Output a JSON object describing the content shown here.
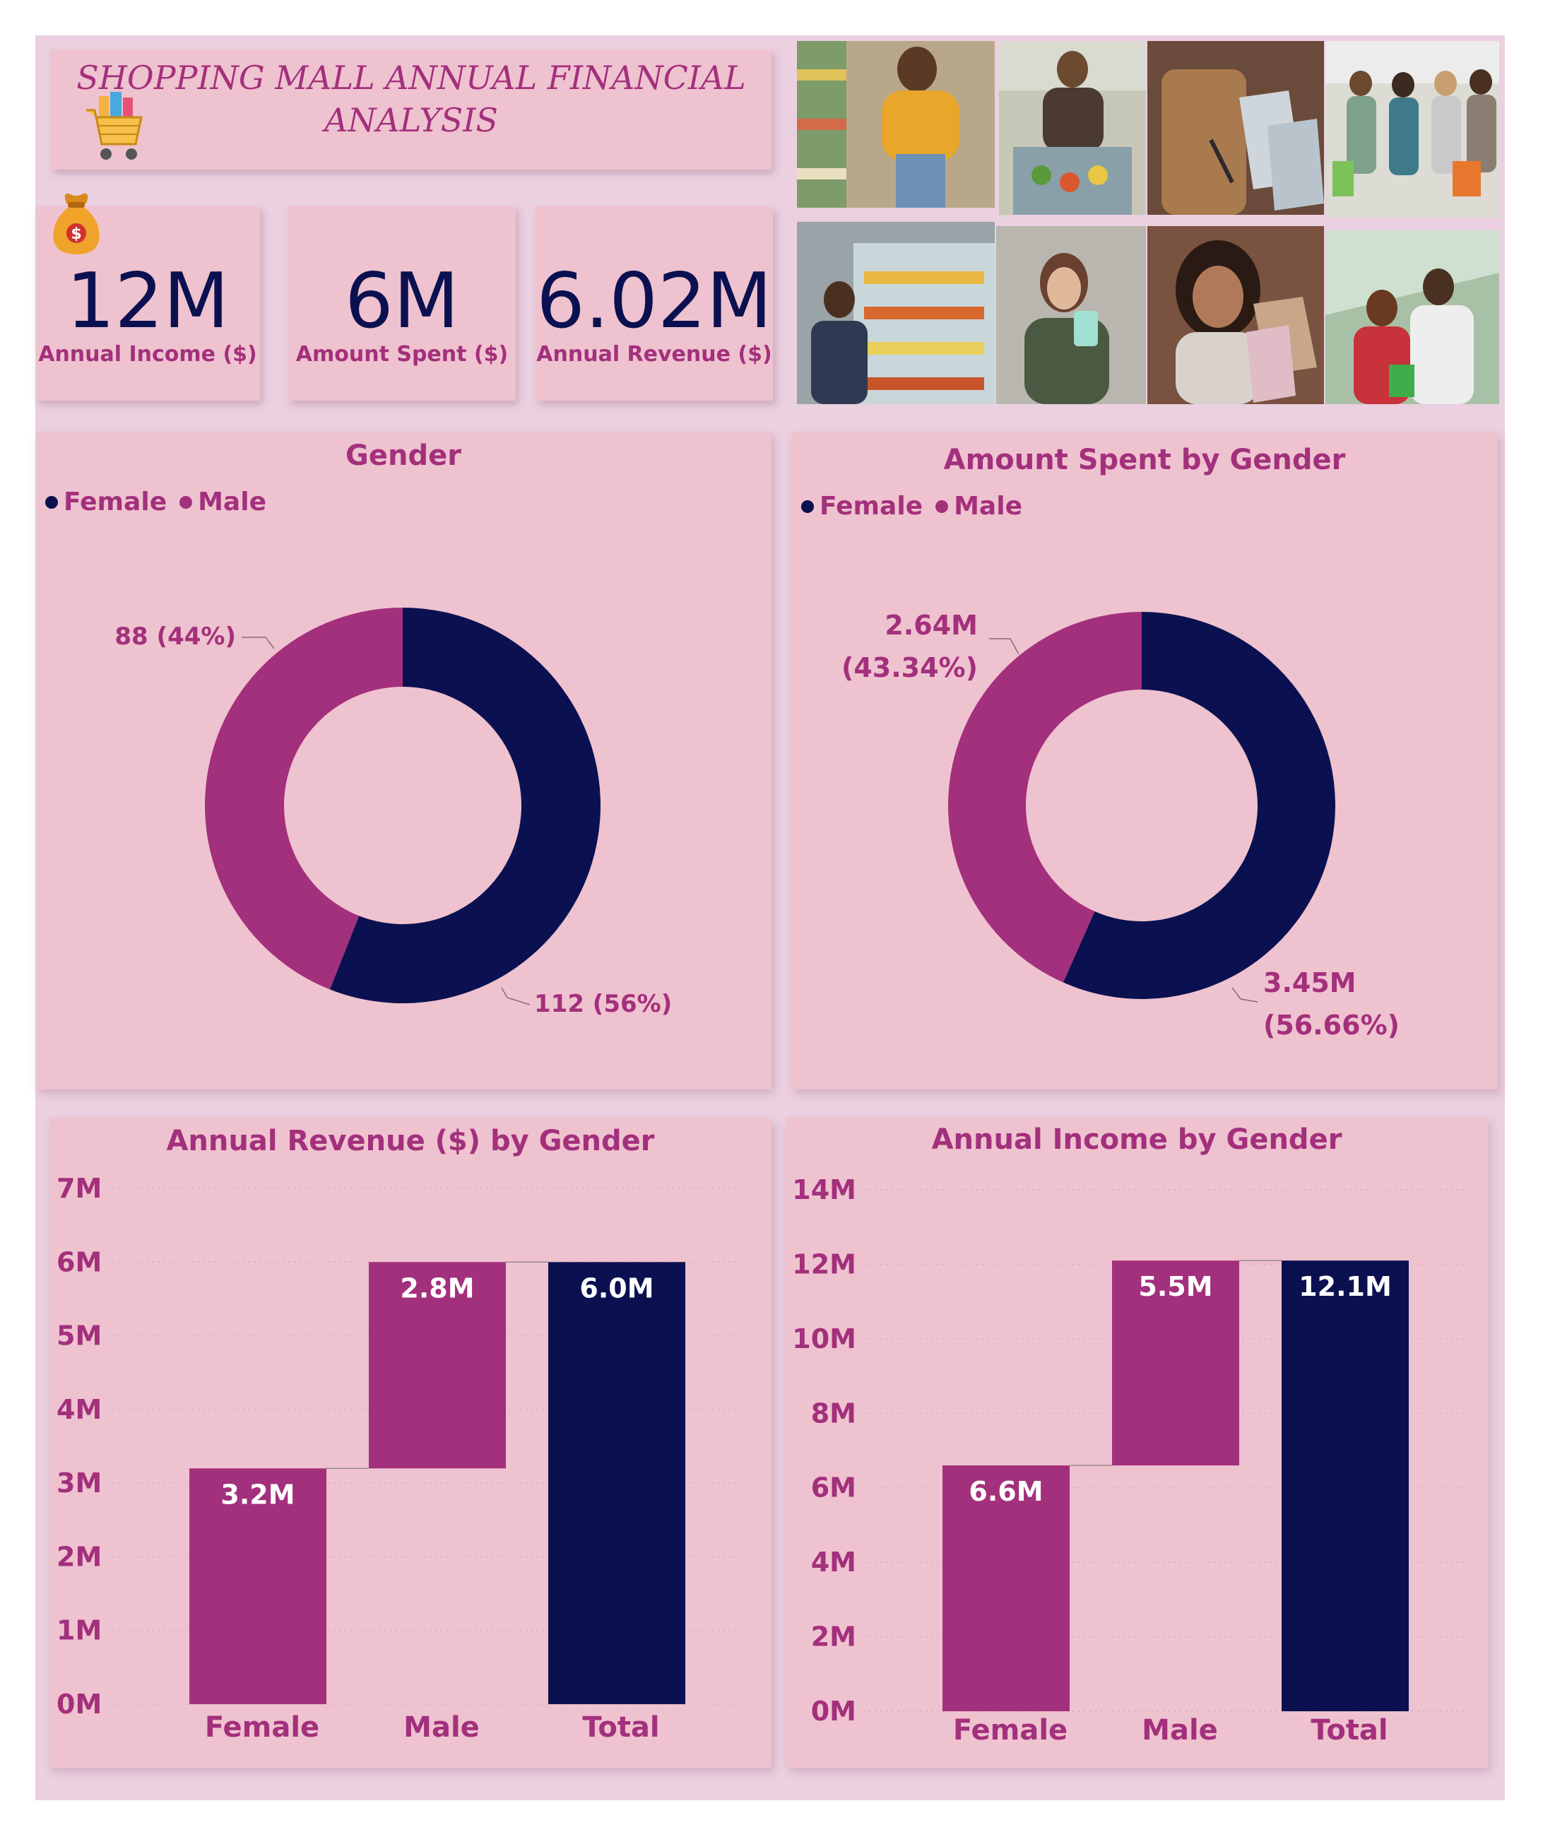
{
  "header": {
    "title_line1": "SHOPPING MALL  ANNUAL FINANCIAL",
    "title_line2": "ANALYSIS"
  },
  "colors": {
    "female": "#0b1150",
    "male": "#a3307c",
    "total": "#0b1150",
    "panel": "#efc2cf",
    "background": "#ebd0e0",
    "accent_text": "#a3307c"
  },
  "icons": [
    "shopping-cart-icon",
    "money-bag-icon"
  ],
  "kpis": [
    {
      "value": "12M",
      "label": "Annual Income ($)"
    },
    {
      "value": "6M",
      "label": "Amount Spent ($)"
    },
    {
      "value": "6.02M",
      "label": "Annual Revenue ($)"
    }
  ],
  "chart_data": [
    {
      "type": "pie",
      "title": "Gender",
      "legend": [
        "Female",
        "Male"
      ],
      "legend_position": "top-left",
      "categories": [
        "Female",
        "Male"
      ],
      "values": [
        112,
        88
      ],
      "data_labels": [
        "112 (56%)",
        "88 (44%)"
      ]
    },
    {
      "type": "pie",
      "title": "Amount Spent by Gender",
      "legend": [
        "Female",
        "Male"
      ],
      "legend_position": "top-left",
      "categories": [
        "Female",
        "Male"
      ],
      "values": [
        3.45,
        2.64
      ],
      "unit": "M",
      "data_labels": [
        [
          "3.45M",
          "(56.66%)"
        ],
        [
          "2.64M",
          "(43.34%)"
        ]
      ]
    },
    {
      "type": "bar",
      "subtype": "waterfall",
      "title": "Annual Revenue ($) by Gender",
      "categories": [
        "Female",
        "Male",
        "Total"
      ],
      "values": [
        3.2,
        2.8,
        6.0
      ],
      "starts": [
        0,
        3.2,
        0
      ],
      "data_labels": [
        "3.2M",
        "2.8M",
        "6.0M"
      ],
      "ylim": [
        0,
        7
      ],
      "yticks": [
        "0M",
        "1M",
        "2M",
        "3M",
        "4M",
        "5M",
        "6M",
        "7M"
      ],
      "grid": true
    },
    {
      "type": "bar",
      "subtype": "waterfall",
      "title": "Annual Income by Gender",
      "categories": [
        "Female",
        "Male",
        "Total"
      ],
      "values": [
        6.6,
        5.5,
        12.1
      ],
      "starts": [
        0,
        6.6,
        0
      ],
      "data_labels": [
        "6.6M",
        "5.5M",
        "12.1M"
      ],
      "ylim": [
        0,
        14
      ],
      "yticks": [
        "0M",
        "2M",
        "4M",
        "6M",
        "8M",
        "10M",
        "12M",
        "14M"
      ],
      "grid": true
    }
  ]
}
